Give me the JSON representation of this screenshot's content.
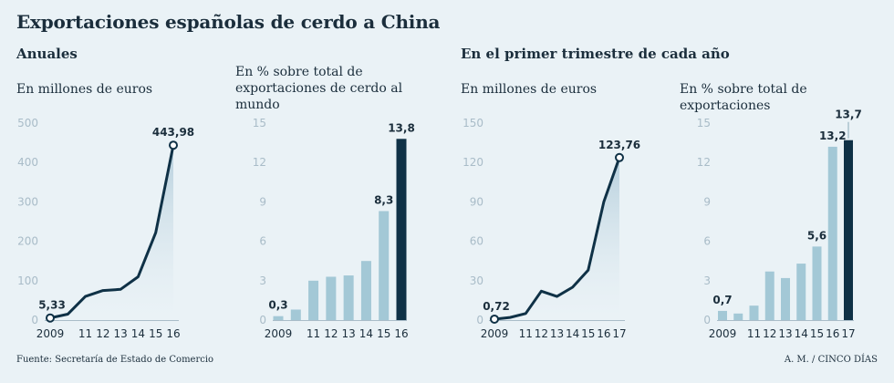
{
  "title": "Exportaciones españolas de cerdo a China",
  "sections": {
    "annual": "Anuales",
    "quarter": "En el primer trimestre de cada año"
  },
  "colors": {
    "line": "#0f3146",
    "bar": "#a3c8d6",
    "bar_highlight": "#0f3146",
    "area_top": "#b5cfdb",
    "axis_tick": "#a9bcc8"
  },
  "footer": {
    "source": "Fuente: Secretaría de Estado de Comercio",
    "credit": "A. M. / CINCO DÍAS"
  },
  "chart_data": [
    {
      "type": "area",
      "section": "Anuales",
      "subtitle": "En millones de euros",
      "categories": [
        "2009",
        "10",
        "11",
        "12",
        "13",
        "14",
        "15",
        "16"
      ],
      "x_tick_labels": [
        "2009",
        "",
        "11",
        "12",
        "13",
        "14",
        "15",
        "16"
      ],
      "values": [
        5.33,
        15,
        60,
        75,
        78,
        110,
        222,
        443.98
      ],
      "ylim": [
        0,
        500
      ],
      "yticks": [
        0,
        100,
        200,
        300,
        400,
        500
      ],
      "labels": [
        {
          "index": 0,
          "text": "5,33"
        },
        {
          "index": 7,
          "text": "443,98"
        }
      ],
      "grid": false
    },
    {
      "type": "bar",
      "section": "Anuales",
      "subtitle": "En % sobre total de exportaciones de cerdo al mundo",
      "categories": [
        "2009",
        "10",
        "11",
        "12",
        "13",
        "14",
        "15",
        "16"
      ],
      "x_tick_labels": [
        "2009",
        "",
        "11",
        "12",
        "13",
        "14",
        "15",
        "16"
      ],
      "values": [
        0.3,
        0.8,
        3.0,
        3.3,
        3.4,
        4.5,
        8.3,
        13.8
      ],
      "ylim": [
        0,
        15
      ],
      "yticks": [
        0,
        3,
        6,
        9,
        12,
        15
      ],
      "labels": [
        {
          "index": 0,
          "text": "0,3"
        },
        {
          "index": 6,
          "text": "8,3"
        },
        {
          "index": 7,
          "text": "13,8"
        }
      ],
      "highlight_index": 7,
      "grid": false
    },
    {
      "type": "area",
      "section": "En el primer trimestre de cada año",
      "subtitle": "En millones de euros",
      "categories": [
        "2009",
        "10",
        "11",
        "12",
        "13",
        "14",
        "15",
        "16",
        "17"
      ],
      "x_tick_labels": [
        "2009",
        "",
        "11",
        "12",
        "13",
        "14",
        "15",
        "16",
        "17"
      ],
      "values": [
        0.72,
        2,
        5,
        22,
        18,
        25,
        38,
        90,
        123.76
      ],
      "ylim": [
        0,
        150
      ],
      "yticks": [
        0,
        30,
        60,
        90,
        120,
        150
      ],
      "labels": [
        {
          "index": 0,
          "text": "0,72"
        },
        {
          "index": 8,
          "text": "123,76"
        }
      ],
      "grid": false
    },
    {
      "type": "bar",
      "section": "En el primer trimestre de cada año",
      "subtitle": "En % sobre total de exportaciones",
      "categories": [
        "2009",
        "10",
        "11",
        "12",
        "13",
        "14",
        "15",
        "16",
        "17"
      ],
      "x_tick_labels": [
        "2009",
        "",
        "11",
        "12",
        "13",
        "14",
        "15",
        "16",
        "17"
      ],
      "values": [
        0.7,
        0.5,
        1.1,
        3.7,
        3.2,
        4.3,
        5.6,
        13.2,
        13.7
      ],
      "ylim": [
        0,
        15
      ],
      "yticks": [
        0,
        3,
        6,
        9,
        12,
        15
      ],
      "labels": [
        {
          "index": 0,
          "text": "0,7"
        },
        {
          "index": 6,
          "text": "5,6"
        },
        {
          "index": 7,
          "text": "13,2"
        },
        {
          "index": 8,
          "text": "13,7"
        }
      ],
      "highlight_index": 8,
      "grid": false
    }
  ]
}
